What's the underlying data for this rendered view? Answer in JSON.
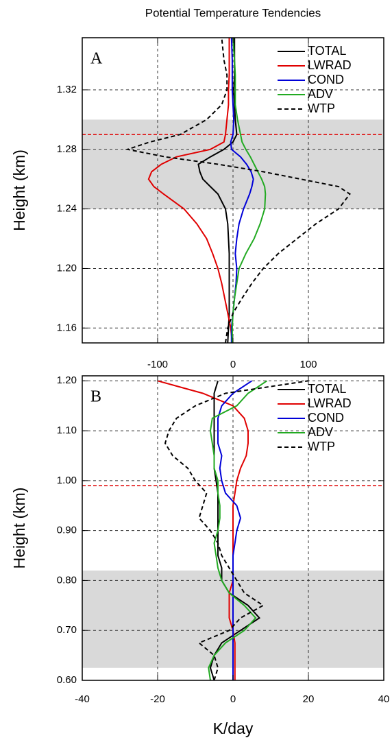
{
  "chart_data": [
    {
      "type": "line",
      "title": "Potential Temperature Tendencies",
      "label": "A",
      "ylabel": "Height (km)",
      "xlim": [
        -200,
        200
      ],
      "xticks": [
        -100,
        0,
        100
      ],
      "ylim": [
        1.15,
        1.355
      ],
      "yticks": [
        1.16,
        {
          "value": 1.2,
          "label": "1.20"
        },
        1.24,
        1.28,
        1.32
      ],
      "grid": true,
      "legend": "upper right",
      "shade": [
        1.24,
        1.3
      ],
      "hline": 1.29,
      "hline_color": "#e00000",
      "y": [
        1.15,
        1.16,
        1.17,
        1.18,
        1.19,
        1.2,
        1.21,
        1.22,
        1.23,
        1.24,
        1.25,
        1.255,
        1.26,
        1.265,
        1.27,
        1.275,
        1.28,
        1.285,
        1.29,
        1.3,
        1.31,
        1.32,
        1.33,
        1.34,
        1.355
      ],
      "series": [
        {
          "name": "TOTAL",
          "color": "#000000",
          "dashed": false,
          "values": [
            -7,
            -6,
            -5,
            -5,
            -5,
            -5,
            -5,
            -6,
            -7,
            -10,
            -20,
            -30,
            -40,
            -44,
            -46,
            -30,
            -12,
            0,
            5,
            3,
            2,
            1,
            2,
            2,
            2
          ]
        },
        {
          "name": "LWRAD",
          "color": "#e00000",
          "dashed": false,
          "values": [
            -1,
            -3,
            -7,
            -11,
            -15,
            -20,
            -27,
            -35,
            -48,
            -65,
            -92,
            -105,
            -112,
            -108,
            -95,
            -75,
            -30,
            -12,
            -10,
            -8,
            -6,
            -6,
            -5,
            -5,
            -5
          ]
        },
        {
          "name": "COND",
          "color": "#0000d8",
          "dashed": false,
          "values": [
            -2,
            -2,
            0,
            2,
            4,
            5,
            3,
            5,
            8,
            14,
            22,
            25,
            27,
            24,
            18,
            10,
            -2,
            -3,
            0,
            1,
            0,
            -1,
            -1,
            -1,
            -2
          ]
        },
        {
          "name": "ADV",
          "color": "#22aa22",
          "dashed": false,
          "values": [
            -1,
            -1,
            0,
            2,
            5,
            8,
            17,
            28,
            36,
            42,
            43,
            42,
            38,
            33,
            28,
            23,
            17,
            12,
            10,
            6,
            3,
            3,
            3,
            2,
            0
          ]
        },
        {
          "name": "WTP",
          "color": "#000000",
          "dashed": true,
          "values": [
            -10,
            -7,
            0,
            12,
            25,
            40,
            60,
            85,
            110,
            140,
            155,
            140,
            90,
            40,
            -20,
            -90,
            -140,
            -110,
            -70,
            -35,
            -15,
            -8,
            -8,
            -12,
            -15
          ]
        }
      ]
    },
    {
      "type": "line",
      "label": "B",
      "ylabel": "Height (km)",
      "xlabel": "K/day",
      "xlim": [
        -40,
        40
      ],
      "xticks": [
        -40,
        -20,
        0,
        20,
        40
      ],
      "ylim": [
        0.6,
        1.21
      ],
      "yticks": [
        {
          "value": 0.6,
          "label": "0.60"
        },
        {
          "value": 0.7,
          "label": "0.70"
        },
        {
          "value": 0.8,
          "label": "0.80"
        },
        {
          "value": 0.9,
          "label": "0.90"
        },
        {
          "value": 1.0,
          "label": "1.00"
        },
        {
          "value": 1.1,
          "label": "1.10"
        },
        {
          "value": 1.2,
          "label": "1.20"
        }
      ],
      "grid": true,
      "legend": "upper right",
      "shade": [
        0.625,
        0.82
      ],
      "hline": 0.99,
      "hline_color": "#e00000",
      "y": [
        0.6,
        0.625,
        0.65,
        0.675,
        0.7,
        0.725,
        0.75,
        0.775,
        0.8,
        0.825,
        0.85,
        0.875,
        0.9,
        0.925,
        0.95,
        0.975,
        1.0,
        1.025,
        1.05,
        1.075,
        1.1,
        1.125,
        1.15,
        1.175,
        1.2
      ],
      "series": [
        {
          "name": "TOTAL",
          "color": "#000000",
          "dashed": false,
          "values": [
            -5,
            -6,
            -5,
            -3,
            2,
            7,
            4,
            -1,
            -3,
            -3,
            -4,
            -4,
            -4,
            -4,
            -4,
            -4,
            -4.5,
            -5,
            -5,
            -5,
            -5,
            -5,
            -5,
            -5,
            -4
          ]
        },
        {
          "name": "LWRAD",
          "color": "#e00000",
          "dashed": false,
          "values": [
            0.5,
            0.5,
            0.5,
            0.5,
            0,
            -1,
            -1,
            -1,
            0,
            0,
            0,
            0,
            0,
            0,
            0,
            0.5,
            1,
            2,
            3.5,
            4,
            4,
            3,
            0,
            -8,
            -20
          ]
        },
        {
          "name": "COND",
          "color": "#0000d8",
          "dashed": false,
          "values": [
            0,
            0,
            0,
            0,
            0,
            0,
            0,
            0,
            0,
            0,
            0,
            0.5,
            1,
            2,
            1,
            -2,
            -3,
            -3.5,
            -3,
            -4,
            -4,
            -4,
            -3,
            0,
            5
          ]
        },
        {
          "name": "ADV",
          "color": "#22aa22",
          "dashed": false,
          "values": [
            -6,
            -6.5,
            -5,
            -2,
            3,
            6,
            3,
            -1,
            -3,
            -4,
            -4.5,
            -5,
            -4,
            -3.5,
            -3.5,
            -4,
            -4,
            -5,
            -5,
            -5.5,
            -6,
            -5.5,
            1,
            4,
            9
          ]
        },
        {
          "name": "WTP",
          "color": "#000000",
          "dashed": true,
          "values": [
            -5,
            -4,
            -5,
            -9,
            -1,
            2,
            8,
            3,
            1,
            -1,
            -3,
            -4,
            -6,
            -9,
            -8,
            -7,
            -10,
            -12,
            -16,
            -18,
            -17,
            -15,
            -10,
            -2,
            20
          ]
        }
      ]
    }
  ]
}
